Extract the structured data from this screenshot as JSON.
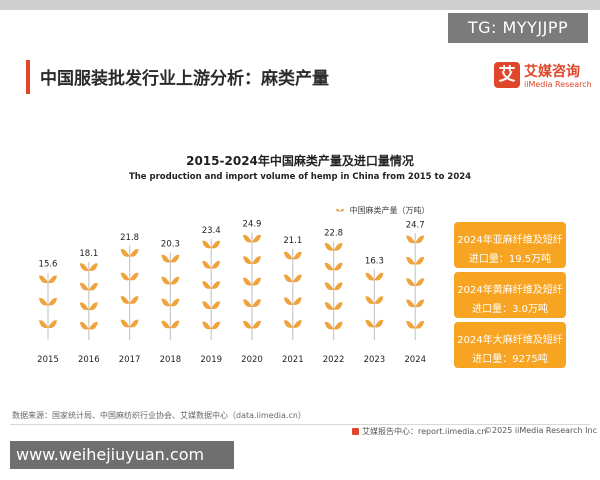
{
  "watermark_top": "TG: MYYJJPP",
  "watermark_bottom": "www.weihejiuyuan.com",
  "page_title": "中国服装批发行业上游分析：麻类产量",
  "logo": {
    "mark": "艾",
    "name_cn": "艾媒咨询",
    "name_en": "iiMedia Research"
  },
  "chart_data": {
    "type": "bar",
    "title": "2015-2024年中国麻类产量及进口量情况",
    "subtitle": "The production and import volume of hemp in China from 2015 to 2024",
    "legend": {
      "label": "中国麻类产量（万吨）",
      "position": "top-right"
    },
    "categories": [
      "2015",
      "2016",
      "2017",
      "2018",
      "2019",
      "2020",
      "2021",
      "2022",
      "2023",
      "2024"
    ],
    "values": [
      15.6,
      18.1,
      21.8,
      20.3,
      23.4,
      24.9,
      21.1,
      22.8,
      16.3,
      24.7
    ],
    "value_labels": [
      "15.6",
      "18.1",
      "21.8",
      "20.3",
      "23.4",
      "24.9",
      "21.1",
      "22.8",
      "16.3",
      "24.7"
    ],
    "ylim": [
      0,
      25
    ],
    "xlabel": "",
    "ylabel": "",
    "colors": {
      "leaf": "#f0a23c",
      "stem": "#c9c9c9"
    }
  },
  "cards": [
    {
      "line1": "2024年亚麻纤维及短纤",
      "line2": "进口量：19.5万吨"
    },
    {
      "line1": "2024年黄麻纤维及短纤",
      "line2": "进口量：3.0万吨"
    },
    {
      "line1": "2024年大麻纤维及短纤",
      "line2": "进口量：9275吨"
    }
  ],
  "source": "数据来源：国家统计局、中国麻纺织行业协会、艾媒数据中心（data.iimedia.cn）",
  "footer": {
    "site": "艾媒报告中心：report.iimedia.cn",
    "copyright": "©2025  iiMedia Research  Inc"
  },
  "colors": {
    "accent": "#e0462a",
    "card": "#f7a422"
  }
}
